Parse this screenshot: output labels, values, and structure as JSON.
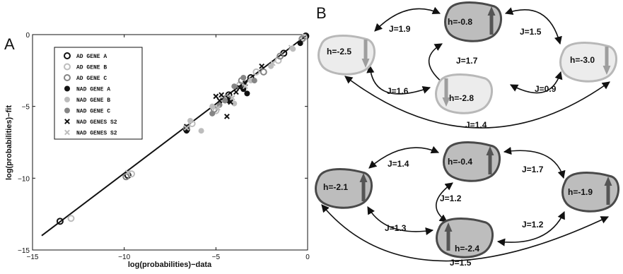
{
  "panel_labels": {
    "a": "A",
    "b": "B"
  },
  "chart_data": [
    {
      "type": "scatter",
      "title": "",
      "xlabel": "log(probabilities)−data",
      "ylabel": "log(probabilities)−fit",
      "xlim": [
        -15,
        0
      ],
      "ylim": [
        -15,
        0
      ],
      "x_ticks": [
        "−15",
        "−10",
        "−5",
        "0"
      ],
      "y_ticks": [
        "0",
        "−5",
        "−10",
        "−15"
      ],
      "grid": false,
      "legend_position": "top-left",
      "fit_line": {
        "x": [
          -14.5,
          0
        ],
        "y": [
          -14,
          0
        ]
      },
      "series": [
        {
          "name": "AD GENE A",
          "marker": "open-circle",
          "color": "#111111",
          "points": [
            [
              -13.5,
              -13.0
            ],
            [
              -9.8,
              -9.8
            ],
            [
              -6.6,
              -6.6
            ],
            [
              -4.3,
              -4.2
            ],
            [
              -3.1,
              -3.0
            ],
            [
              -1.3,
              -1.3
            ],
            [
              -0.1,
              -0.1
            ]
          ]
        },
        {
          "name": "AD GENE B",
          "marker": "open-circle",
          "color": "#bdbdbd",
          "points": [
            [
              -12.9,
              -12.8
            ],
            [
              -9.6,
              -9.7
            ],
            [
              -6.3,
              -6.2
            ],
            [
              -5.0,
              -5.3
            ],
            [
              -4.6,
              -4.5
            ],
            [
              -3.7,
              -3.5
            ],
            [
              -2.8,
              -2.6
            ],
            [
              -1.6,
              -1.8
            ],
            [
              -0.2,
              -0.2
            ]
          ]
        },
        {
          "name": "AD GENE C",
          "marker": "open-circle",
          "color": "#858585",
          "points": [
            [
              -9.9,
              -9.9
            ],
            [
              -6.6,
              -6.5
            ],
            [
              -5.1,
              -5.2
            ],
            [
              -4.4,
              -4.4
            ],
            [
              -3.6,
              -3.2
            ],
            [
              -2.4,
              -2.6
            ],
            [
              -1.5,
              -1.5
            ],
            [
              -0.3,
              -0.3
            ]
          ]
        },
        {
          "name": "NAD GENE A",
          "marker": "filled-circle",
          "color": "#111111",
          "points": [
            [
              -6.6,
              -6.7
            ],
            [
              -4.3,
              -4.6
            ],
            [
              -3.5,
              -3.8
            ],
            [
              -3.3,
              -4.1
            ],
            [
              -0.4,
              -0.6
            ]
          ]
        },
        {
          "name": "NAD GENE B",
          "marker": "filled-circle",
          "color": "#bdbdbd",
          "points": [
            [
              -6.4,
              -6.0
            ],
            [
              -5.8,
              -6.7
            ],
            [
              -5.2,
              -5.0
            ],
            [
              -4.0,
              -4.8
            ],
            [
              -3.1,
              -3.2
            ],
            [
              -2.0,
              -2.2
            ],
            [
              -0.8,
              -1.0
            ]
          ]
        },
        {
          "name": "NAD GENE C",
          "marker": "filled-circle",
          "color": "#858585",
          "points": [
            [
              -5.2,
              -5.5
            ],
            [
              -4.8,
              -4.9
            ],
            [
              -4.5,
              -4.6
            ],
            [
              -4.0,
              -3.6
            ],
            [
              -3.5,
              -3.0
            ],
            [
              -2.9,
              -3.2
            ]
          ]
        },
        {
          "name": "NAD GENES S2",
          "marker": "x",
          "color": "#111111",
          "points": [
            [
              -6.6,
              -6.4
            ],
            [
              -5.0,
              -4.3
            ],
            [
              -4.8,
              -4.6
            ],
            [
              -4.4,
              -5.7
            ],
            [
              -4.7,
              -4.2
            ],
            [
              -4.2,
              -4.7
            ],
            [
              -3.9,
              -4.0
            ],
            [
              -3.7,
              -3.7
            ],
            [
              -3.4,
              -3.4
            ],
            [
              -2.5,
              -2.2
            ]
          ]
        },
        {
          "name": "NAD GENES S2",
          "marker": "x",
          "color": "#bdbdbd",
          "points": [
            [
              -9.8,
              -9.6
            ],
            [
              -6.6,
              -6.5
            ],
            [
              -4.9,
              -5.1
            ],
            [
              -4.1,
              -4.4
            ],
            [
              -3.4,
              -3.6
            ],
            [
              -1.9,
              -2.0
            ],
            [
              -0.9,
              -0.9
            ]
          ]
        }
      ]
    },
    {
      "type": "network",
      "networks": [
        {
          "nodes": [
            {
              "label": "h=-0.8",
              "fill": "#bdbdbd",
              "stroke": "#4a4a4a",
              "arrow": "up",
              "arrow_color": "#555555"
            },
            {
              "label": "h=-2.5",
              "fill": "#ececec",
              "stroke": "#b8b8b8",
              "arrow": "down",
              "arrow_color": "#9e9e9e"
            },
            {
              "label": "h=-2.8",
              "fill": "#ececec",
              "stroke": "#b8b8b8",
              "arrow": "down",
              "arrow_color": "#9e9e9e"
            },
            {
              "label": "h=-3.0",
              "fill": "#ececec",
              "stroke": "#b8b8b8",
              "arrow": "down",
              "arrow_color": "#9e9e9e"
            }
          ],
          "couplings": [
            {
              "label": "J=1.9"
            },
            {
              "label": "J=1.5"
            },
            {
              "label": "J=1.7"
            },
            {
              "label": "J=1.6"
            },
            {
              "label": "J=0.9"
            },
            {
              "label": "J=1.4"
            }
          ]
        },
        {
          "nodes": [
            {
              "label": "h=-0.4",
              "fill": "#bdbdbd",
              "stroke": "#4a4a4a",
              "arrow": "up",
              "arrow_color": "#555555"
            },
            {
              "label": "h=-2.1",
              "fill": "#bdbdbd",
              "stroke": "#4a4a4a",
              "arrow": "up",
              "arrow_color": "#555555"
            },
            {
              "label": "h=-2.4",
              "fill": "#bdbdbd",
              "stroke": "#4a4a4a",
              "arrow": "up",
              "arrow_color": "#555555"
            },
            {
              "label": "h=-1.9",
              "fill": "#bdbdbd",
              "stroke": "#4a4a4a",
              "arrow": "up",
              "arrow_color": "#555555"
            }
          ],
          "couplings": [
            {
              "label": "J=1.4"
            },
            {
              "label": "J=1.7"
            },
            {
              "label": "J=1.2"
            },
            {
              "label": "J=1.3"
            },
            {
              "label": "J=1.2"
            },
            {
              "label": "J=1.5"
            }
          ]
        }
      ]
    }
  ]
}
